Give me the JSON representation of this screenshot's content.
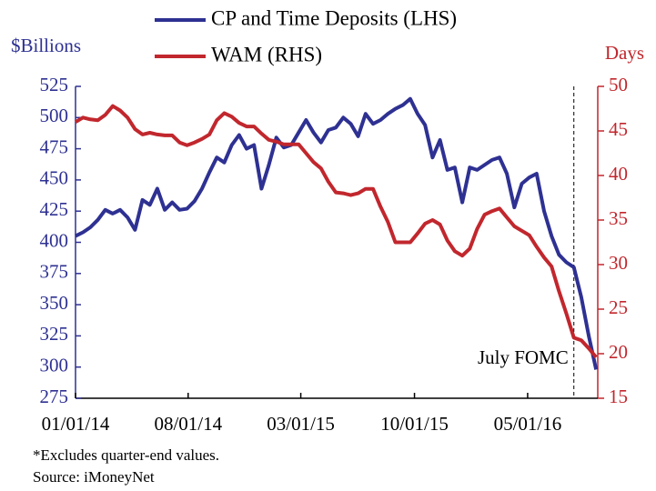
{
  "chart_data": {
    "type": "line",
    "y_label": "$Billions",
    "y2_label": "Days",
    "x": [
      "2014-01-01",
      "2014-01-15",
      "2014-01-29",
      "2014-02-12",
      "2014-02-26",
      "2014-03-12",
      "2014-03-26",
      "2014-04-09",
      "2014-04-23",
      "2014-05-07",
      "2014-05-21",
      "2014-06-04",
      "2014-06-18",
      "2014-07-02",
      "2014-07-16",
      "2014-07-30",
      "2014-08-13",
      "2014-08-27",
      "2014-09-10",
      "2014-09-24",
      "2014-10-08",
      "2014-10-22",
      "2014-11-05",
      "2014-11-19",
      "2014-12-03",
      "2014-12-17",
      "2014-12-31",
      "2015-01-14",
      "2015-01-28",
      "2015-02-11",
      "2015-02-25",
      "2015-03-11",
      "2015-03-25",
      "2015-04-08",
      "2015-04-22",
      "2015-05-06",
      "2015-05-20",
      "2015-06-03",
      "2015-06-17",
      "2015-07-01",
      "2015-07-15",
      "2015-07-29",
      "2015-08-12",
      "2015-08-26",
      "2015-09-09",
      "2015-09-23",
      "2015-10-07",
      "2015-10-21",
      "2015-11-04",
      "2015-11-18",
      "2015-12-02",
      "2015-12-16",
      "2015-12-30",
      "2016-01-13",
      "2016-01-27",
      "2016-02-10",
      "2016-02-24",
      "2016-03-09",
      "2016-03-23",
      "2016-04-06",
      "2016-04-20",
      "2016-05-04",
      "2016-05-18",
      "2016-06-01",
      "2016-06-15",
      "2016-06-29",
      "2016-07-13",
      "2016-07-27",
      "2016-08-10",
      "2016-08-24",
      "2016-09-07"
    ],
    "series": [
      {
        "name": "CP and Time Deposits (LHS)",
        "color": "#2e3192",
        "axis": "y",
        "values": [
          405,
          408,
          412,
          418,
          426,
          423,
          426,
          420,
          410,
          434,
          430,
          443,
          426,
          432,
          426,
          427,
          433,
          443,
          456,
          468,
          464,
          478,
          486,
          475,
          478,
          443,
          462,
          484,
          476,
          478,
          488,
          498,
          488,
          480,
          490,
          492,
          500,
          495,
          485,
          503,
          495,
          498,
          503,
          507,
          510,
          515,
          503,
          494,
          468,
          482,
          458,
          460,
          432,
          460,
          458,
          462,
          466,
          468,
          455,
          428,
          447,
          452,
          455,
          425,
          405,
          390,
          384,
          380,
          356,
          325,
          298
        ]
      },
      {
        "name": "WAM (RHS)",
        "color": "#c1272d",
        "axis": "y2",
        "values": [
          46,
          46.5,
          46.3,
          46.2,
          46.8,
          47.8,
          47.3,
          46.5,
          45.2,
          44.6,
          44.8,
          44.6,
          44.5,
          44.5,
          43.7,
          43.4,
          43.7,
          44.1,
          44.6,
          46.2,
          47,
          46.6,
          45.9,
          45.5,
          45.5,
          44.7,
          44,
          43.8,
          43.5,
          43.5,
          43.5,
          42.5,
          41.5,
          40.8,
          39.3,
          38.1,
          38,
          37.8,
          38,
          38.5,
          38.5,
          36.5,
          34.8,
          32.5,
          32.5,
          32.5,
          33.5,
          34.6,
          35,
          34.5,
          32.7,
          31.5,
          31,
          31.8,
          34,
          35.6,
          36,
          36.3,
          35.3,
          34.3,
          33.8,
          33.3,
          32,
          30.8,
          29.8,
          27,
          24.5,
          21.8,
          21.5,
          20.6,
          19.6
        ]
      }
    ],
    "xlim": [
      "2014-01-01",
      "2016-09-10"
    ],
    "xticks": [
      {
        "value": "2014-01-01",
        "label": "01/01/14"
      },
      {
        "value": "2014-08-01",
        "label": "08/01/14"
      },
      {
        "value": "2015-03-01",
        "label": "03/01/15"
      },
      {
        "value": "2015-10-01",
        "label": "10/01/15"
      },
      {
        "value": "2016-05-01",
        "label": "05/01/16"
      }
    ],
    "ylim": [
      275,
      525
    ],
    "yticks": [
      275,
      300,
      325,
      350,
      375,
      400,
      425,
      450,
      475,
      500,
      525
    ],
    "y2lim": [
      15,
      50
    ],
    "y2ticks": [
      15,
      20,
      25,
      30,
      35,
      40,
      45,
      50
    ],
    "annotations": [
      {
        "text": "July FOMC",
        "x": "2016-07-27"
      }
    ],
    "footnotes": [
      "*Excludes quarter-end values.",
      "Source: iMoneyNet"
    ]
  }
}
